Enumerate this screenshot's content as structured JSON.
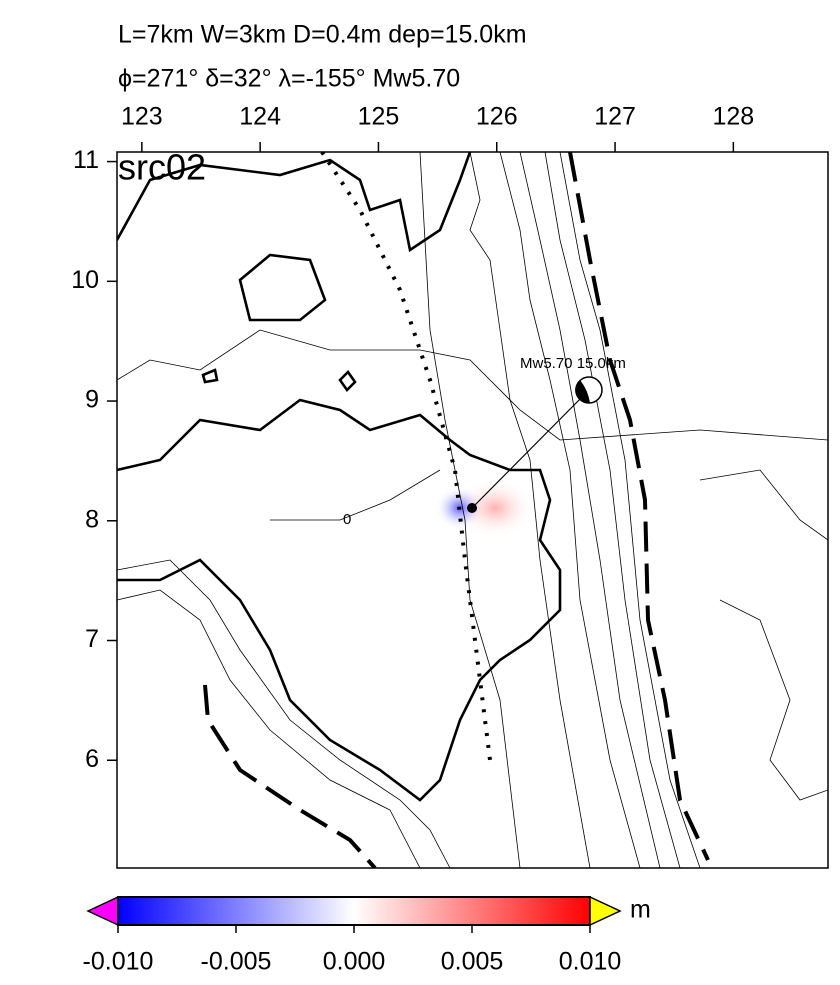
{
  "map": {
    "title": "L=7km W=3km D=0.4m dep=15.0km",
    "subtitle": "ϕ=271° δ=32° λ=-155° Mw5.70",
    "panel_label": "src02",
    "event_label": "Mw5.70  15.0km",
    "contour_label": "0",
    "xlim": [
      122.79,
      128.8
    ],
    "ylim": [
      5.1,
      11.08
    ],
    "xticks": [
      123,
      124,
      125,
      126,
      127,
      128
    ],
    "yticks": [
      6,
      7,
      8,
      9,
      10,
      11
    ],
    "colorbar": {
      "unit": "m",
      "lim": [
        -0.01,
        0.01
      ],
      "ticks": [
        {
          "value": -0.01,
          "label": "-0.010"
        },
        {
          "value": -0.005,
          "label": "-0.005"
        },
        {
          "value": 0,
          "label": "0.000"
        },
        {
          "value": 0.005,
          "label": "0.005"
        },
        {
          "value": 0.01,
          "label": "0.010"
        }
      ]
    }
  }
}
